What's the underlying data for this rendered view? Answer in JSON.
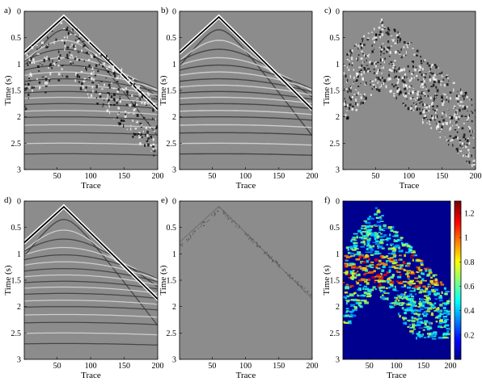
{
  "panels": [
    {
      "letter": "a)",
      "content": "gather-noisy"
    },
    {
      "letter": "b)",
      "content": "gather-clean"
    },
    {
      "letter": "c)",
      "content": "noise-only"
    },
    {
      "letter": "d)",
      "content": "gather-denoised"
    },
    {
      "letter": "e)",
      "content": "residual"
    },
    {
      "letter": "f)",
      "content": "error-heatmap"
    }
  ],
  "axes": {
    "xlabel": "Trace",
    "ylabel": "Time (s)",
    "xticks": [
      "50",
      "100",
      "150",
      "200"
    ],
    "xtick_values": [
      50,
      100,
      150,
      200
    ],
    "yticks": [
      "0",
      "0.5",
      "1",
      "1.5",
      "2",
      "2.5",
      "3"
    ],
    "ytick_values": [
      0,
      0.5,
      1,
      1.5,
      2,
      2.5,
      3
    ],
    "xlim": [
      1,
      200
    ],
    "ylim": [
      0,
      3
    ]
  },
  "colorbar": {
    "ticks": [
      "0.2",
      "0.4",
      "0.6",
      "0.8",
      "1",
      "1.2"
    ],
    "tick_values": [
      0.2,
      0.4,
      0.6,
      0.8,
      1.0,
      1.2
    ],
    "range": [
      0,
      1.3
    ],
    "colormap": "jet"
  },
  "colors": {
    "seismic_background": "#8c8c8c",
    "heatmap_background": "#00008f"
  }
}
